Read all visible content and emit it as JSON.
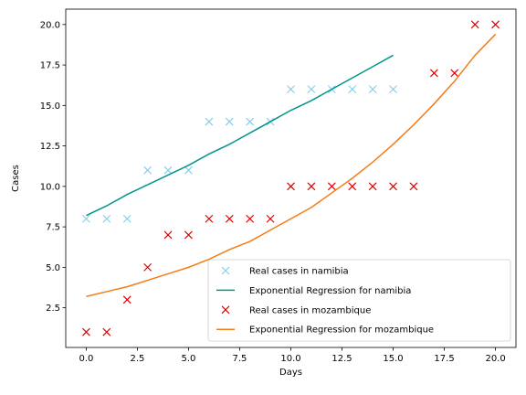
{
  "chart_data": {
    "type": "scatter",
    "title": "",
    "xlabel": "Days",
    "ylabel": "Cases",
    "xlim": [
      -1,
      21
    ],
    "ylim": [
      0.05,
      20.95
    ],
    "xticks": [
      0.0,
      2.5,
      5.0,
      7.5,
      10.0,
      12.5,
      15.0,
      17.5,
      20.0
    ],
    "xtick_labels": [
      "0.0",
      "2.5",
      "5.0",
      "7.5",
      "10.0",
      "12.5",
      "15.0",
      "17.5",
      "20.0"
    ],
    "yticks": [
      2.5,
      5.0,
      7.5,
      10.0,
      12.5,
      15.0,
      17.5,
      20.0
    ],
    "ytick_labels": [
      "2.5",
      "5.0",
      "7.5",
      "10.0",
      "12.5",
      "15.0",
      "17.5",
      "20.0"
    ],
    "grid": false,
    "legend_position": "lower-right",
    "series": [
      {
        "name": "Real cases in namibia",
        "kind": "scatter",
        "marker": "x",
        "color": "#87ceeb",
        "x": [
          0,
          1,
          2,
          3,
          4,
          5,
          6,
          7,
          8,
          9,
          10,
          11,
          12,
          13,
          14,
          15
        ],
        "y": [
          8,
          8,
          8,
          11,
          11,
          11,
          14,
          14,
          14,
          14,
          16,
          16,
          16,
          16,
          16,
          16
        ]
      },
      {
        "name": "Exponential Regression for namibia",
        "kind": "line",
        "color": "#009688",
        "x": [
          0,
          1,
          2,
          3,
          4,
          5,
          6,
          7,
          8,
          9,
          10,
          11,
          12,
          13,
          14,
          15
        ],
        "y": [
          8.2,
          8.8,
          9.5,
          10.1,
          10.7,
          11.3,
          12.0,
          12.6,
          13.3,
          14.0,
          14.7,
          15.3,
          16.0,
          16.7,
          17.4,
          18.1
        ]
      },
      {
        "name": "Real cases in mozambique",
        "kind": "scatter",
        "marker": "x",
        "color": "#e00000",
        "x": [
          0,
          1,
          2,
          3,
          4,
          5,
          6,
          7,
          8,
          9,
          10,
          11,
          12,
          13,
          14,
          15,
          16,
          17,
          18,
          19,
          20
        ],
        "y": [
          1,
          1,
          3,
          5,
          7,
          7,
          8,
          8,
          8,
          8,
          10,
          10,
          10,
          10,
          10,
          10,
          10,
          17,
          17,
          20,
          20
        ]
      },
      {
        "name": "Exponential Regression for mozambique",
        "kind": "line",
        "color": "#f47c17",
        "x": [
          0,
          1,
          2,
          3,
          4,
          5,
          6,
          7,
          8,
          9,
          10,
          11,
          12,
          13,
          14,
          15,
          16,
          17,
          18,
          19,
          20
        ],
        "y": [
          3.2,
          3.5,
          3.8,
          4.2,
          4.6,
          5.0,
          5.5,
          6.1,
          6.6,
          7.3,
          8.0,
          8.7,
          9.6,
          10.5,
          11.5,
          12.6,
          13.8,
          15.1,
          16.5,
          18.1,
          19.4
        ]
      }
    ]
  }
}
